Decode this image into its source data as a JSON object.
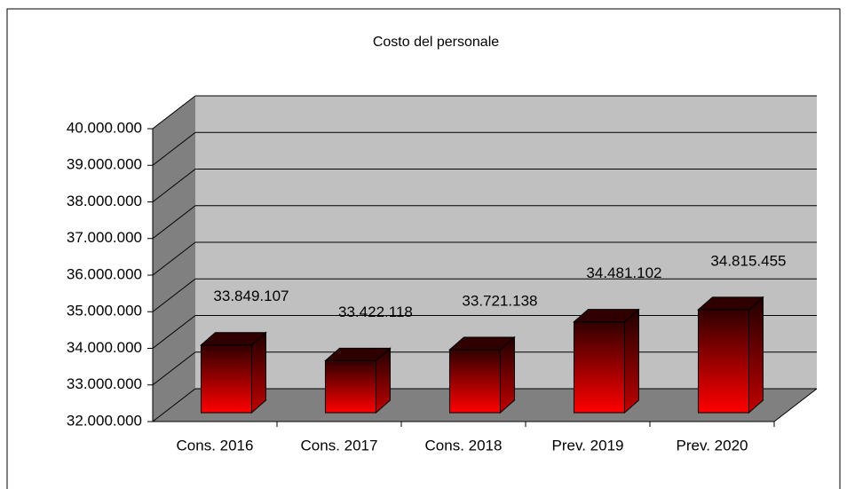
{
  "chart_data": {
    "type": "bar3d",
    "title": "Costo del personale",
    "categories": [
      "Cons. 2016",
      "Cons. 2017",
      "Cons. 2018",
      "Prev. 2019",
      "Prev. 2020"
    ],
    "values": [
      33849107,
      33422118,
      33721138,
      34481102,
      34815455
    ],
    "value_labels": [
      "33.849.107",
      "33.422.118",
      "33.721.138",
      "34.481.102",
      "34.815.455"
    ],
    "color": "#ff0000",
    "ylim": [
      32000000,
      40000000
    ],
    "yticks": [
      {
        "value": 32000000,
        "label": "32.000.000"
      },
      {
        "value": 33000000,
        "label": "33.000.000"
      },
      {
        "value": 34000000,
        "label": "34.000.000"
      },
      {
        "value": 35000000,
        "label": "35.000.000"
      },
      {
        "value": 36000000,
        "label": "36.000.000"
      },
      {
        "value": 37000000,
        "label": "37.000.000"
      },
      {
        "value": 38000000,
        "label": "38.000.000"
      },
      {
        "value": 39000000,
        "label": "39.000.000"
      },
      {
        "value": 40000000,
        "label": "40.000.000"
      }
    ],
    "grid": true
  }
}
